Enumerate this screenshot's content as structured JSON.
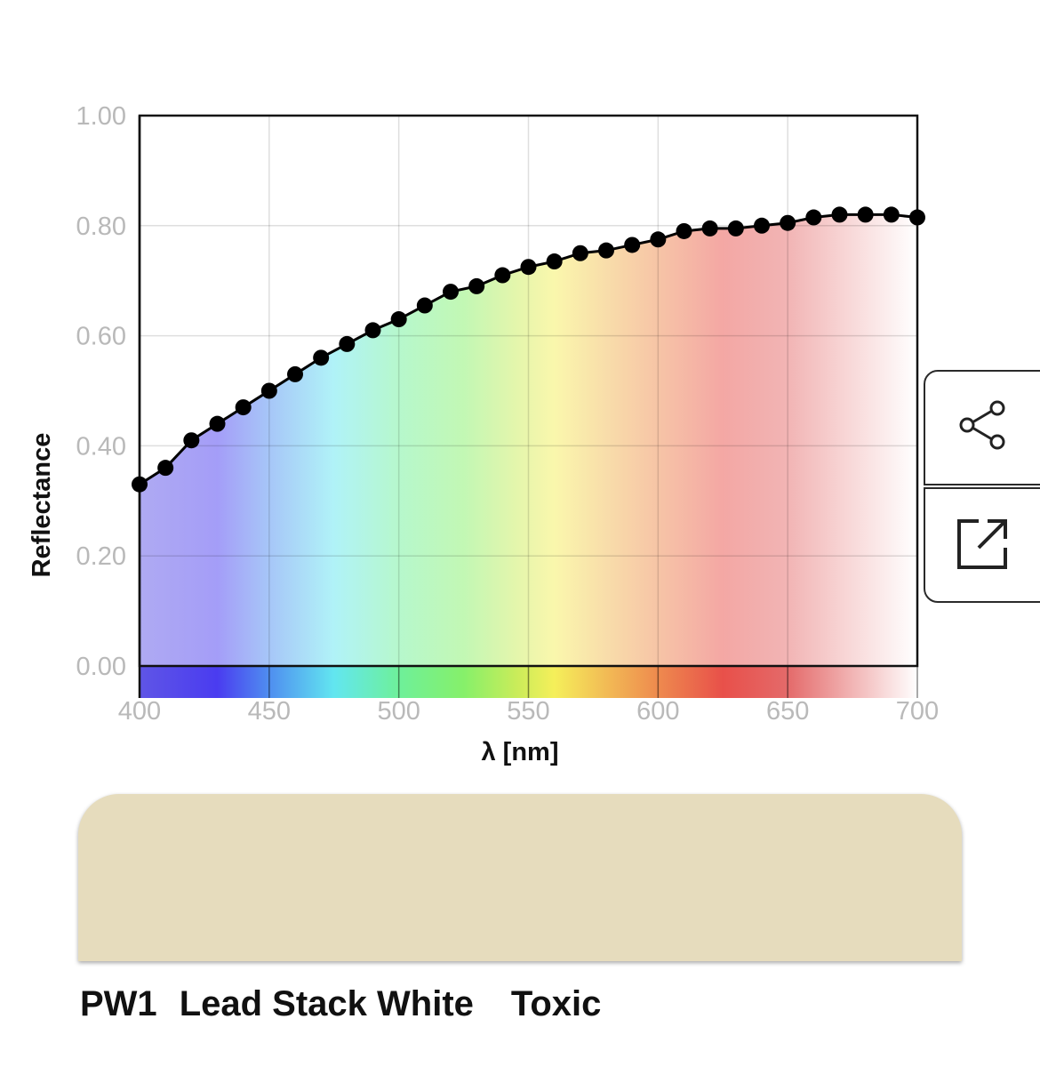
{
  "chart_data": {
    "type": "line",
    "title": "",
    "xlabel": "λ [nm]",
    "ylabel": "Reflectance",
    "xlim": [
      400,
      700
    ],
    "ylim": [
      0,
      1
    ],
    "xticks": [
      "400",
      "450",
      "500",
      "550",
      "600",
      "650",
      "700"
    ],
    "yticks": [
      "0.00",
      "0.20",
      "0.40",
      "0.60",
      "0.80",
      "1.00"
    ],
    "grid": true,
    "legend": "none",
    "fill_under_curve": "visible spectrum gradient",
    "series": [
      {
        "x": [
          400,
          410,
          420,
          430,
          440,
          450,
          460,
          470,
          480,
          490,
          500,
          510,
          520,
          530,
          540,
          550,
          560,
          570,
          580,
          590,
          600,
          610,
          620,
          630,
          640,
          650,
          660,
          670,
          680,
          690,
          700
        ],
        "values": [
          0.33,
          0.36,
          0.41,
          0.44,
          0.47,
          0.5,
          0.53,
          0.56,
          0.585,
          0.61,
          0.63,
          0.655,
          0.68,
          0.69,
          0.71,
          0.725,
          0.735,
          0.75,
          0.755,
          0.765,
          0.775,
          0.79,
          0.795,
          0.795,
          0.8,
          0.805,
          0.815,
          0.82,
          0.82,
          0.82,
          0.815
        ]
      }
    ]
  },
  "spectrum_colors": {
    "400": "#5f55e6",
    "430": "#4a3cf0",
    "450": "#4f8ef0",
    "475": "#62e6f0",
    "500": "#6ef09a",
    "525": "#86f06a",
    "545": "#c8ec5a",
    "560": "#f5ef5a",
    "580": "#f2bb55",
    "600": "#ee8a4e",
    "625": "#e8504a",
    "650": "#e46a6a",
    "700": "#ffffff"
  },
  "actions": {
    "share_icon": "share-icon",
    "export_icon": "external-link-icon"
  },
  "swatch": {
    "color": "#e6dcbd"
  },
  "pigment": {
    "code": "PW1",
    "name": "Lead Stack White",
    "toxicity": "Toxic"
  }
}
